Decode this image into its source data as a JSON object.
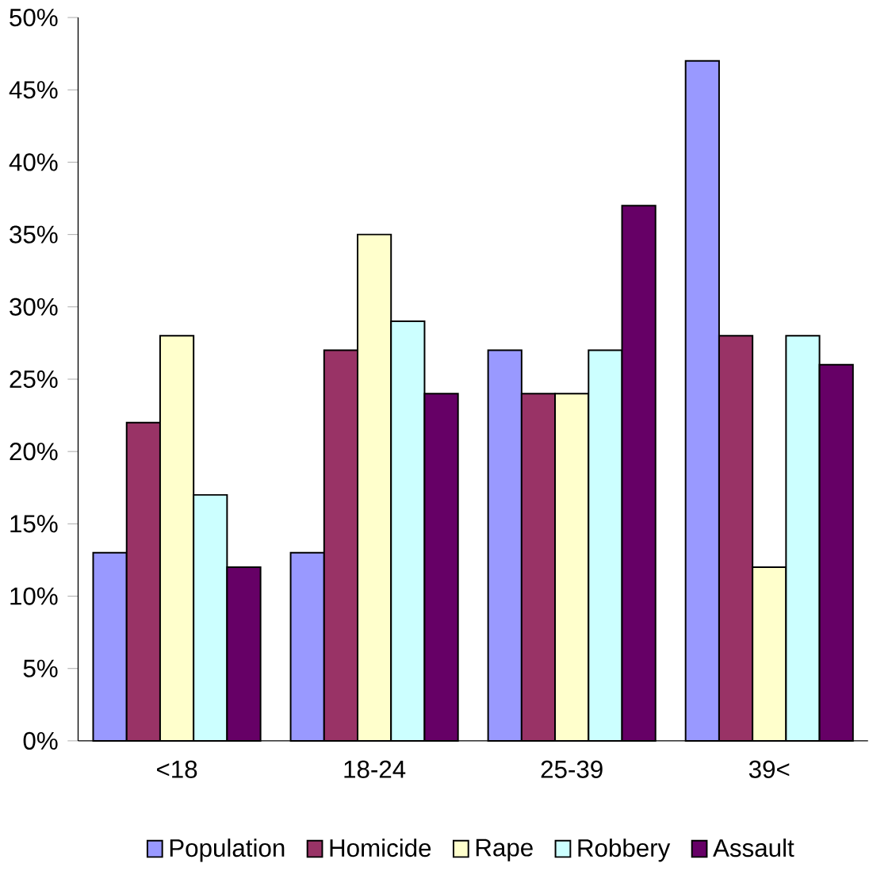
{
  "chart_data": {
    "type": "bar",
    "categories": [
      "<18",
      "18-24",
      "25-39",
      "39<"
    ],
    "series": [
      {
        "name": "Population",
        "color": "#9999ff",
        "values": [
          13,
          13,
          27,
          47
        ]
      },
      {
        "name": "Homicide",
        "color": "#993366",
        "values": [
          22,
          27,
          24,
          28
        ]
      },
      {
        "name": "Rape",
        "color": "#ffffcc",
        "values": [
          28,
          35,
          24,
          12
        ]
      },
      {
        "name": "Robbery",
        "color": "#ccffff",
        "values": [
          17,
          29,
          27,
          28
        ]
      },
      {
        "name": "Assault",
        "color": "#660066",
        "values": [
          12,
          24,
          37,
          26
        ]
      }
    ],
    "ylim": [
      0,
      50
    ],
    "yticks": [
      {
        "value": 0,
        "label": "0%"
      },
      {
        "value": 5,
        "label": "5%"
      },
      {
        "value": 10,
        "label": "10%"
      },
      {
        "value": 15,
        "label": "15%"
      },
      {
        "value": 20,
        "label": "20%"
      },
      {
        "value": 25,
        "label": "25%"
      },
      {
        "value": 30,
        "label": "30%"
      },
      {
        "value": 35,
        "label": "35%"
      },
      {
        "value": 40,
        "label": "40%"
      },
      {
        "value": 45,
        "label": "45%"
      },
      {
        "value": 50,
        "label": "50%"
      }
    ],
    "legend": "bottom"
  }
}
